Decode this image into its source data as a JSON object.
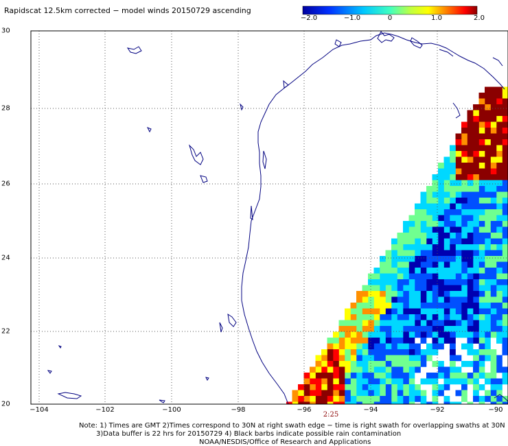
{
  "title": "Rapidscat 12.5km corrected − model winds 20150729 ascending",
  "colorbar": {
    "labels": [
      "−2.0",
      "−1.0",
      "0",
      "1.0",
      "2.0"
    ],
    "colors": [
      "#0000b0",
      "#0050ff",
      "#00d8ff",
      "#70ff90",
      "#ffff00",
      "#ff9000",
      "#ff0000",
      "#8b0000"
    ]
  },
  "latitude_labels": [
    "30",
    "28",
    "26",
    "24",
    "22",
    "20"
  ],
  "longitude_labels": [
    "−104",
    "−102",
    "−100",
    "−98",
    "−96",
    "−94",
    "−92",
    "−90"
  ],
  "time_label": "2:25",
  "notes": [
    "Note: 1) Times are GMT 2)Times correspond to 30N at right swath edge − time is right swath for overlapping swaths at 30N",
    "3)Data buffer is 22 hrs for 20150729 4) Black barbs indicate possible rain contamination",
    "NOAA/NESDIS/Office of Research and Applications"
  ],
  "map": {
    "coastline_color": "#000080",
    "grid": true
  }
}
